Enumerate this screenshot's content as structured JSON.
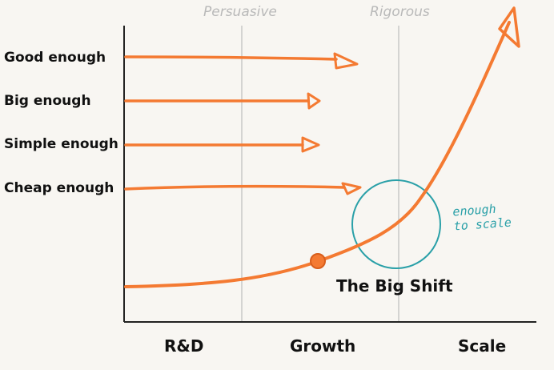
{
  "phases": {
    "persuasive": "Persuasive",
    "rigorous": "Rigorous"
  },
  "rows": [
    {
      "label": "Good enough"
    },
    {
      "label": "Big enough"
    },
    {
      "label": "Simple enough"
    },
    {
      "label": "Cheap enough"
    }
  ],
  "stages": {
    "rnd": "R&D",
    "growth": "Growth",
    "scale": "Scale"
  },
  "annotations": {
    "big_shift": "The Big Shift",
    "note_line1": "enough",
    "note_line2": "to scale"
  },
  "colors": {
    "accent": "#f47a32",
    "teal": "#2aa0a8",
    "axis": "#222222",
    "divider": "#c8c8c8",
    "background": "#f8f6f2"
  }
}
